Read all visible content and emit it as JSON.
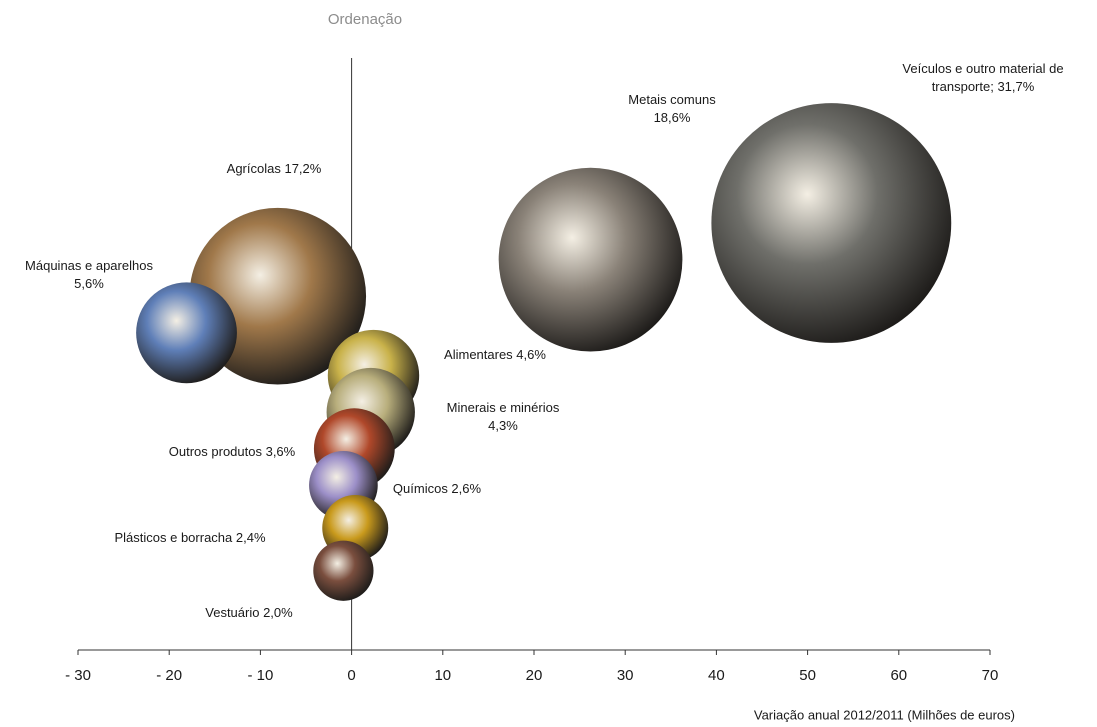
{
  "chart_data": {
    "type": "bubble",
    "y_label": "Ordenação",
    "x_label": "Variação anual 2012/2011 (Milhões  de euros)",
    "xlim": [
      -30,
      70
    ],
    "xticks": [
      {
        "value": -30,
        "label": "- 30"
      },
      {
        "value": -20,
        "label": "- 20"
      },
      {
        "value": -10,
        "label": "- 10"
      },
      0,
      10,
      20,
      30,
      40,
      50,
      60,
      70
    ],
    "ylim": [
      0,
      10
    ],
    "labels": [
      "Veículos e outro material de\ntransporte; 31,7%",
      "Metais comuns\n18,6%",
      "Agrícolas 17,2%",
      "Máquinas e aparelhos\n5,6%",
      "Alimentares 4,6%",
      "Minerais e minérios\n4,3%",
      "Outros produtos 3,6%",
      "Químicos 2,6%",
      "Plásticos e borracha 2,4%",
      "Vestuário 2,0%"
    ],
    "x": [
      52.6,
      26.2,
      -8.1,
      -18.1,
      2.4,
      2.1,
      0.3,
      -0.9,
      0.4,
      -0.9
    ],
    "y": [
      7.0,
      6.4,
      5.8,
      5.2,
      4.5,
      3.9,
      3.3,
      2.7,
      2.0,
      1.3
    ],
    "sizes": [
      31.7,
      18.6,
      17.2,
      5.6,
      4.6,
      4.3,
      3.6,
      2.6,
      2.4,
      2.0
    ],
    "colors": [
      "#6f6f6a",
      "#8a8278",
      "#a0784a",
      "#5f7fb8",
      "#c9b24a",
      "#b8ae7c",
      "#b0482a",
      "#9c8fc8",
      "#c99a1c",
      "#7a4e3e"
    ]
  }
}
